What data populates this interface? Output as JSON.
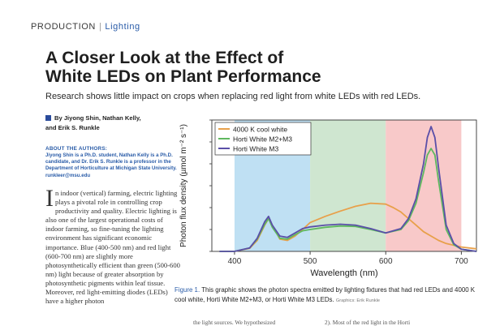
{
  "header": {
    "section": "PRODUCTION",
    "separator": "|",
    "subsection": "Lighting"
  },
  "article": {
    "title_line1": "A Closer Look at the Effect of",
    "title_line2": "White LEDs on Plant Performance",
    "subtitle": "Research shows little impact on crops when replacing red light from white LEDs with red LEDs.",
    "byline_line1": "By Jiyong Shin, Nathan Kelly,",
    "byline_line2": "and Erik S. Runkle",
    "about_heading": "ABOUT THE AUTHORS:",
    "about_text": "Jiyong Shin is a Ph.D. student, Nathan Kelly is a Ph.D. candidate, and Dr. Erik S. Runkle is a professor in the Department of Horticulture at Michigan State University. runkleer@msu.edu",
    "dropcap": "I",
    "body": "n indoor (vertical) farming, electric lighting plays a pivotal role in controlling crop productivity and quality. Electric lighting is also one of the largest operational costs of indoor farming, so fine-tuning the lighting environment has significant economic importance. Blue (400-500 nm) and red light (600-700 nm) are slightly more photosynthetically efficient than green (500-600 nm) light because of greater absorption by photosynthetic pigments within leaf tissue. Moreover, red light-emitting diodes (LEDs) have a higher photon",
    "bottom_fragment_1": "the light sources. We hypothesized",
    "bottom_fragment_2": "2). Most of the red light in the Horti"
  },
  "figure": {
    "label": "Figure 1.",
    "caption": "This graphic shows the photon spectra emitted by lighting fixtures that had red LEDs and 4000 K cool white, Horti White M2+M3, or Horti White M3 LEDs.",
    "credit": "Graphics: Erik Runkle"
  },
  "colors": {
    "accent_blue": "#2a5ca8",
    "band_blue": "#bfe0f3",
    "band_green": "#cfe6d0",
    "band_red": "#f8c9c9"
  },
  "chart_data": {
    "type": "line",
    "xlabel": "Wavelength (nm)",
    "ylabel": "Photon flux density (µmol m⁻² s⁻¹)",
    "xlim": [
      370,
      720
    ],
    "ylim": [
      0,
      3.0
    ],
    "x_ticks": [
      400,
      500,
      600,
      700
    ],
    "bands": [
      {
        "from": 400,
        "to": 500,
        "color": "#bfe0f3"
      },
      {
        "from": 500,
        "to": 600,
        "color": "#cfe6d0"
      },
      {
        "from": 600,
        "to": 700,
        "color": "#f8c9c9"
      }
    ],
    "legend_position": "top-left",
    "series": [
      {
        "name": "4000 K cool white",
        "color": "#e8a04a",
        "x": [
          380,
          400,
          420,
          430,
          440,
          445,
          450,
          460,
          470,
          480,
          490,
          500,
          520,
          540,
          560,
          580,
          600,
          610,
          620,
          630,
          640,
          650,
          660,
          670,
          680,
          700,
          720
        ],
        "y": [
          0,
          0,
          0.07,
          0.25,
          0.6,
          0.75,
          0.6,
          0.28,
          0.25,
          0.35,
          0.5,
          0.66,
          0.8,
          0.92,
          1.03,
          1.1,
          1.08,
          1.0,
          0.9,
          0.75,
          0.6,
          0.45,
          0.35,
          0.25,
          0.18,
          0.1,
          0.06
        ]
      },
      {
        "name": "Horti White M2+M3",
        "color": "#5fb85f",
        "x": [
          380,
          400,
          420,
          430,
          440,
          445,
          450,
          460,
          470,
          480,
          490,
          500,
          520,
          540,
          560,
          580,
          600,
          620,
          630,
          640,
          650,
          655,
          660,
          665,
          670,
          680,
          690,
          700,
          720
        ],
        "y": [
          0,
          0,
          0.08,
          0.28,
          0.62,
          0.75,
          0.55,
          0.3,
          0.28,
          0.38,
          0.47,
          0.5,
          0.55,
          0.58,
          0.57,
          0.5,
          0.42,
          0.5,
          0.7,
          1.1,
          1.8,
          2.2,
          2.35,
          2.2,
          1.6,
          0.5,
          0.15,
          0.05,
          0
        ]
      },
      {
        "name": "Horti White M3",
        "color": "#5a4fa8",
        "x": [
          380,
          400,
          420,
          430,
          440,
          445,
          450,
          460,
          470,
          480,
          490,
          500,
          520,
          540,
          560,
          580,
          600,
          620,
          630,
          640,
          650,
          655,
          660,
          665,
          670,
          680,
          690,
          700,
          720
        ],
        "y": [
          0,
          0,
          0.08,
          0.3,
          0.68,
          0.8,
          0.6,
          0.35,
          0.32,
          0.42,
          0.52,
          0.56,
          0.6,
          0.62,
          0.6,
          0.52,
          0.42,
          0.52,
          0.75,
          1.2,
          2.0,
          2.6,
          2.85,
          2.6,
          1.9,
          0.6,
          0.18,
          0.05,
          0
        ]
      }
    ]
  }
}
